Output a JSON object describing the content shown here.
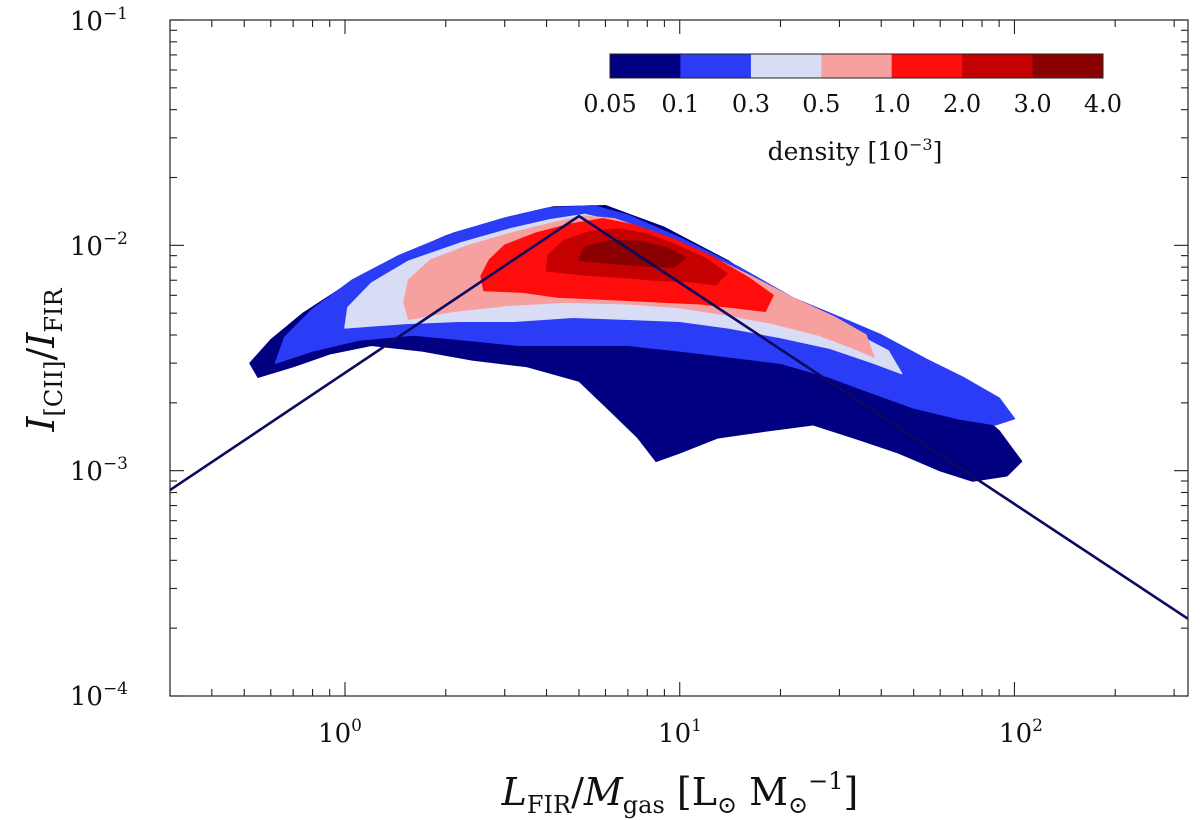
{
  "chart_data": {
    "type": "heatmap",
    "subtype": "filled-contour density plot with broken power-law fit line",
    "x_scale": "log",
    "y_scale": "log",
    "xlim": [
      0.3,
      330
    ],
    "ylim": [
      0.0001,
      0.1
    ],
    "x_ticks": [
      {
        "value": 1,
        "label": "10",
        "exp": "0"
      },
      {
        "value": 10,
        "label": "10",
        "exp": "1"
      },
      {
        "value": 100,
        "label": "10",
        "exp": "2"
      }
    ],
    "y_ticks": [
      {
        "value": 0.0001,
        "label": "10",
        "exp": "−4"
      },
      {
        "value": 0.001,
        "label": "10",
        "exp": "−3"
      },
      {
        "value": 0.01,
        "label": "10",
        "exp": "−2"
      },
      {
        "value": 0.1,
        "label": "10",
        "exp": "−1"
      }
    ],
    "xlabel": "LFIR/Mgas [L⊙ M⊙−1]",
    "ylabel": "I[CII]/IFIR",
    "grid": false,
    "colorbar": {
      "placement": "top-right inset",
      "boundaries": [
        "0.05",
        "0.1",
        "0.3",
        "0.5",
        "1.0",
        "2.0",
        "3.0",
        "4.0"
      ],
      "colors": [
        "#000080",
        "#2a3cf5",
        "#d8dcf4",
        "#f7a0a0",
        "#ff0c0c",
        "#c40000",
        "#8a0000"
      ],
      "label": "density [10",
      "label_exp": "−3",
      "label_close": "]"
    },
    "contour_levels": [
      {
        "level": 0.05,
        "color": "#000080",
        "polygon": [
          [
            0.55,
            0.0026
          ],
          [
            0.7,
            0.0029
          ],
          [
            0.9,
            0.0033
          ],
          [
            1.2,
            0.0036
          ],
          [
            1.7,
            0.0034
          ],
          [
            2.4,
            0.0031
          ],
          [
            3.5,
            0.0029
          ],
          [
            5,
            0.0025
          ],
          [
            6.3,
            0.0018
          ],
          [
            7.5,
            0.0014
          ],
          [
            8.5,
            0.0011
          ],
          [
            10,
            0.0012
          ],
          [
            13,
            0.0014
          ],
          [
            18,
            0.0015
          ],
          [
            25,
            0.0016
          ],
          [
            33,
            0.0014
          ],
          [
            45,
            0.0012
          ],
          [
            60,
            0.001
          ],
          [
            75,
            0.0009
          ],
          [
            95,
            0.00095
          ],
          [
            105,
            0.0011
          ],
          [
            90,
            0.0015
          ],
          [
            70,
            0.0021
          ],
          [
            55,
            0.0027
          ],
          [
            40,
            0.0036
          ],
          [
            30,
            0.0044
          ],
          [
            26,
            0.0046
          ],
          [
            20,
            0.006
          ],
          [
            14,
            0.0085
          ],
          [
            9,
            0.012
          ],
          [
            6,
            0.015
          ],
          [
            4.2,
            0.0148
          ],
          [
            3,
            0.0132
          ],
          [
            2,
            0.011
          ],
          [
            1.35,
            0.0085
          ],
          [
            1.0,
            0.0066
          ],
          [
            0.75,
            0.005
          ],
          [
            0.6,
            0.0038
          ],
          [
            0.52,
            0.003
          ]
        ]
      },
      {
        "level": 0.1,
        "color": "#2a3cf5",
        "polygon": [
          [
            0.62,
            0.003
          ],
          [
            0.8,
            0.0034
          ],
          [
            1.1,
            0.0038
          ],
          [
            1.6,
            0.004
          ],
          [
            2.3,
            0.0038
          ],
          [
            3.3,
            0.0036
          ],
          [
            4.8,
            0.0036
          ],
          [
            7,
            0.0036
          ],
          [
            10,
            0.0034
          ],
          [
            14,
            0.0032
          ],
          [
            20,
            0.003
          ],
          [
            28,
            0.0026
          ],
          [
            38,
            0.0022
          ],
          [
            50,
            0.0019
          ],
          [
            68,
            0.0017
          ],
          [
            88,
            0.0016
          ],
          [
            100,
            0.0017
          ],
          [
            90,
            0.0021
          ],
          [
            70,
            0.0026
          ],
          [
            55,
            0.0031
          ],
          [
            40,
            0.004
          ],
          [
            30,
            0.0048
          ],
          [
            22,
            0.0058
          ],
          [
            15,
            0.008
          ],
          [
            10,
            0.0108
          ],
          [
            7,
            0.0136
          ],
          [
            5.5,
            0.015
          ],
          [
            4,
            0.0146
          ],
          [
            3,
            0.0132
          ],
          [
            2.1,
            0.0113
          ],
          [
            1.45,
            0.009
          ],
          [
            1.05,
            0.007
          ],
          [
            0.8,
            0.0052
          ],
          [
            0.66,
            0.0039
          ]
        ]
      },
      {
        "level": 0.3,
        "color": "#d8dcf4",
        "polygon": [
          [
            1.0,
            0.0043
          ],
          [
            1.5,
            0.0045
          ],
          [
            2.2,
            0.0046
          ],
          [
            3.2,
            0.0046
          ],
          [
            4.8,
            0.0048
          ],
          [
            7,
            0.0047
          ],
          [
            10,
            0.0046
          ],
          [
            14,
            0.0043
          ],
          [
            20,
            0.0039
          ],
          [
            28,
            0.0035
          ],
          [
            38,
            0.003
          ],
          [
            46,
            0.0027
          ],
          [
            42,
            0.0034
          ],
          [
            32,
            0.0042
          ],
          [
            24,
            0.0052
          ],
          [
            17,
            0.0065
          ],
          [
            12,
            0.0086
          ],
          [
            8.5,
            0.0108
          ],
          [
            6.4,
            0.0128
          ],
          [
            5.2,
            0.0137
          ],
          [
            4.1,
            0.013
          ],
          [
            3.1,
            0.0118
          ],
          [
            2.2,
            0.0102
          ],
          [
            1.55,
            0.0085
          ],
          [
            1.2,
            0.0068
          ],
          [
            1.02,
            0.0053
          ]
        ]
      },
      {
        "level": 0.5,
        "color": "#f7a0a0",
        "polygon": [
          [
            1.55,
            0.0047
          ],
          [
            2.1,
            0.0051
          ],
          [
            3,
            0.0054
          ],
          [
            4.5,
            0.0056
          ],
          [
            7,
            0.0055
          ],
          [
            10,
            0.0053
          ],
          [
            14,
            0.0049
          ],
          [
            19,
            0.0045
          ],
          [
            26,
            0.004
          ],
          [
            33,
            0.0035
          ],
          [
            38,
            0.0032
          ],
          [
            36,
            0.004
          ],
          [
            29,
            0.0048
          ],
          [
            22,
            0.0058
          ],
          [
            16,
            0.0074
          ],
          [
            11.5,
            0.0094
          ],
          [
            8.4,
            0.0114
          ],
          [
            6.4,
            0.0131
          ],
          [
            5.2,
            0.0135
          ],
          [
            4.2,
            0.0126
          ],
          [
            3.2,
            0.0114
          ],
          [
            2.35,
            0.01
          ],
          [
            1.8,
            0.0086
          ],
          [
            1.55,
            0.007
          ],
          [
            1.5,
            0.0056
          ]
        ]
      },
      {
        "level": 1.0,
        "color": "#ff0c0c",
        "polygon": [
          [
            2.6,
            0.0063
          ],
          [
            3.4,
            0.0062
          ],
          [
            4.3,
            0.0059
          ],
          [
            5.5,
            0.0058
          ],
          [
            7,
            0.0057
          ],
          [
            9,
            0.0056
          ],
          [
            11.5,
            0.0055
          ],
          [
            14.5,
            0.0053
          ],
          [
            18,
            0.0051
          ],
          [
            19,
            0.006
          ],
          [
            16,
            0.0072
          ],
          [
            12.5,
            0.0089
          ],
          [
            9.5,
            0.0107
          ],
          [
            7.3,
            0.0123
          ],
          [
            5.9,
            0.0131
          ],
          [
            4.7,
            0.0124
          ],
          [
            3.7,
            0.0113
          ],
          [
            3.0,
            0.01
          ],
          [
            2.7,
            0.0086
          ],
          [
            2.55,
            0.0073
          ]
        ]
      },
      {
        "level": 2.0,
        "color": "#c40000",
        "polygon": [
          [
            4.0,
            0.0077
          ],
          [
            5.2,
            0.0074
          ],
          [
            6.8,
            0.0072
          ],
          [
            8.6,
            0.007
          ],
          [
            10.8,
            0.0069
          ],
          [
            12.8,
            0.0067
          ],
          [
            13.8,
            0.0075
          ],
          [
            12,
            0.0087
          ],
          [
            9.8,
            0.01
          ],
          [
            8,
            0.0112
          ],
          [
            6.6,
            0.0118
          ],
          [
            5.4,
            0.0115
          ],
          [
            4.5,
            0.0105
          ],
          [
            4.05,
            0.009
          ]
        ]
      },
      {
        "level": 3.0,
        "color": "#8a0000",
        "polygon": [
          [
            5.0,
            0.0086
          ],
          [
            6.4,
            0.0083
          ],
          [
            8,
            0.0081
          ],
          [
            9.6,
            0.008
          ],
          [
            10.4,
            0.0088
          ],
          [
            9.2,
            0.0097
          ],
          [
            7.6,
            0.0104
          ],
          [
            6.2,
            0.0105
          ],
          [
            5.2,
            0.0098
          ]
        ]
      }
    ],
    "fit_line": {
      "color": "#0a0a60",
      "x": [
        0.3,
        5.0,
        330
      ],
      "y": [
        0.00082,
        0.0135,
        0.00022
      ]
    }
  }
}
